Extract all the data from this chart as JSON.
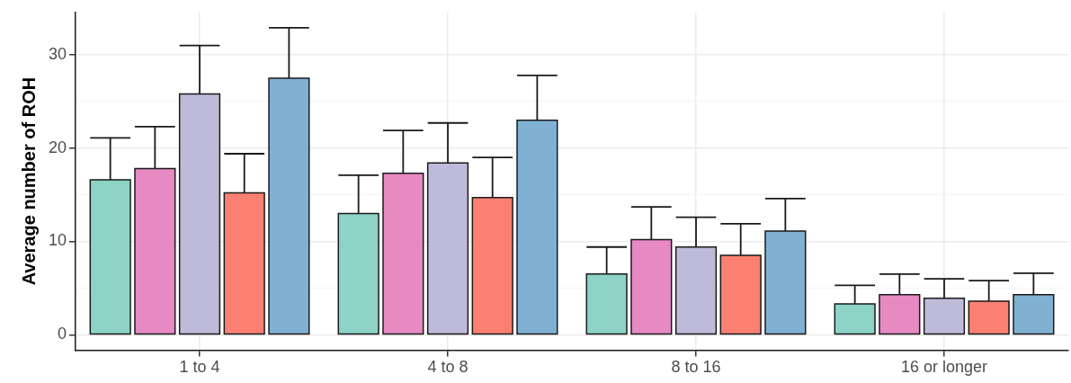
{
  "chart_data": {
    "type": "bar",
    "ylabel": "Average number of ROH",
    "categories": [
      "1 to 4",
      "4 to 8",
      "8 to 16",
      "16 or longer"
    ],
    "series": [
      {
        "color": "#8dd3c7",
        "values": [
          16.6,
          13.0,
          6.5,
          3.3
        ],
        "errors": [
          [
            16.6,
            21.1
          ],
          [
            13.0,
            17.1
          ],
          [
            6.5,
            9.4
          ],
          [
            3.3,
            5.3
          ]
        ]
      },
      {
        "color": "#e78ac3",
        "values": [
          17.8,
          17.3,
          10.2,
          4.3
        ],
        "errors": [
          [
            17.8,
            22.3
          ],
          [
            17.3,
            21.9
          ],
          [
            10.2,
            13.7
          ],
          [
            4.3,
            6.5
          ]
        ]
      },
      {
        "color": "#bebada",
        "values": [
          25.8,
          18.4,
          9.4,
          3.9
        ],
        "errors": [
          [
            25.8,
            31.0
          ],
          [
            18.4,
            22.7
          ],
          [
            9.4,
            12.6
          ],
          [
            3.9,
            6.0
          ]
        ]
      },
      {
        "color": "#fb8072",
        "values": [
          15.2,
          14.7,
          8.5,
          3.6
        ],
        "errors": [
          [
            15.2,
            19.4
          ],
          [
            14.7,
            19.0
          ],
          [
            8.5,
            11.9
          ],
          [
            3.6,
            5.8
          ]
        ]
      },
      {
        "color": "#80b1d3",
        "values": [
          27.5,
          23.0,
          11.1,
          4.3
        ],
        "errors": [
          [
            27.5,
            32.9
          ],
          [
            23.0,
            27.8
          ],
          [
            11.1,
            14.6
          ],
          [
            4.3,
            6.6
          ]
        ]
      }
    ],
    "ylim": [
      -1.65,
      34.55
    ],
    "yticks": [
      0,
      {
        "value": 5,
        "label": null
      },
      10,
      {
        "value": 15,
        "label": null
      },
      20,
      {
        "value": 25,
        "label": null
      },
      30
    ],
    "grid": true
  }
}
